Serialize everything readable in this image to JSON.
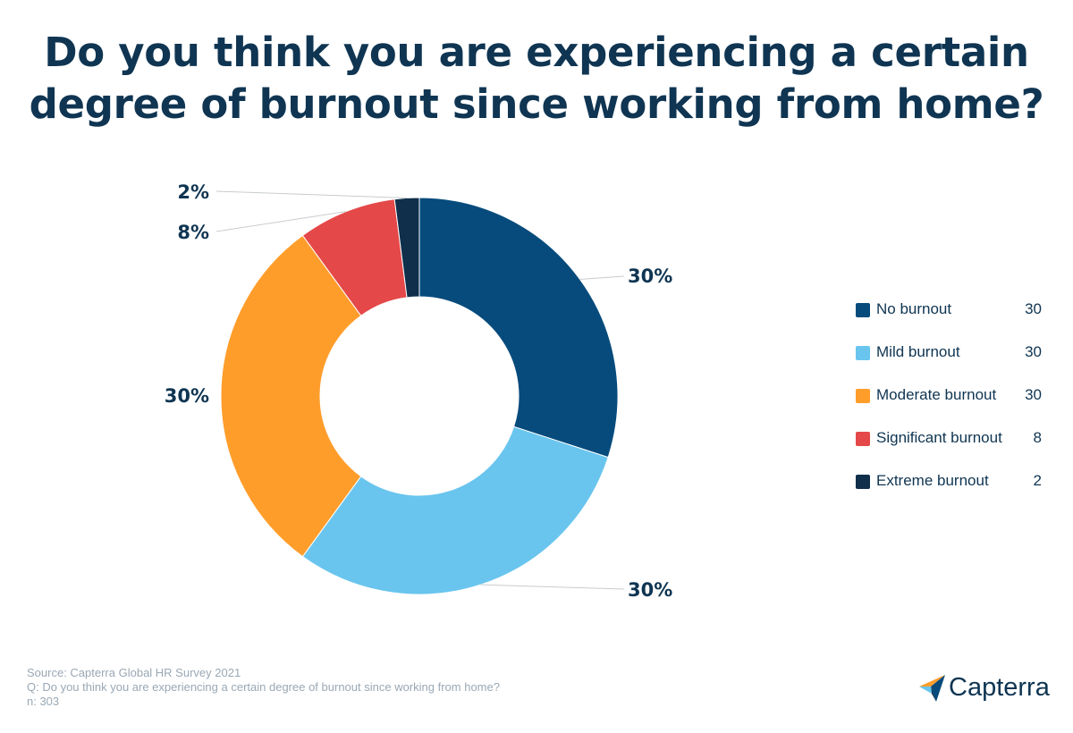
{
  "title": {
    "line1": "Do you think you are experiencing a certain",
    "line2": "degree of burnout since working from home?"
  },
  "chart_data": {
    "type": "pie",
    "variant": "donut",
    "categories": [
      "No burnout",
      "Mild burnout",
      "Moderate burnout",
      "Significant burnout",
      "Extreme burnout"
    ],
    "values": [
      30,
      30,
      30,
      8,
      2
    ],
    "data_labels": [
      "30%",
      "30%",
      "30%",
      "8%",
      "2%"
    ],
    "colors": [
      "#064b7c",
      "#69c5ee",
      "#ff9d2b",
      "#e44848",
      "#0f2f4b"
    ],
    "legend_position": "right",
    "title": "Do you think you are experiencing a certain degree of burnout since working from home?"
  },
  "legend": [
    {
      "label": "No burnout",
      "value": "30"
    },
    {
      "label": "Mild burnout",
      "value": "30"
    },
    {
      "label": "Moderate burnout",
      "value": "30"
    },
    {
      "label": "Significant burnout",
      "value": "8"
    },
    {
      "label": "Extreme burnout",
      "value": "2"
    }
  ],
  "source": {
    "line1": "Source: Capterra Global HR Survey 2021",
    "line2": "Q: Do you think you are experiencing a certain degree of burnout since working from home?",
    "line3": "n: 303"
  },
  "brand": {
    "name": "Capterra",
    "logo_icon": "capterra-arrow-icon"
  },
  "colors": {
    "title": "#0f3552",
    "source": "#9aa8b5",
    "leader_line": "#c8ccd0"
  }
}
